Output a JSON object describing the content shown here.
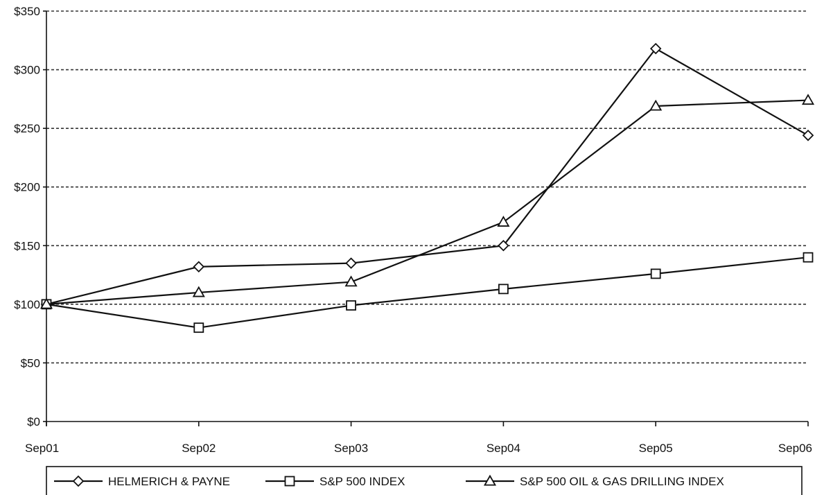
{
  "chart_data": {
    "type": "line",
    "title": "",
    "xlabel": "",
    "ylabel": "",
    "categories": [
      "Sep01",
      "Sep02",
      "Sep03",
      "Sep04",
      "Sep05",
      "Sep06"
    ],
    "ylim": [
      0,
      350
    ],
    "yticks": [
      0,
      50,
      100,
      150,
      200,
      250,
      300,
      350
    ],
    "ytick_labels": [
      "$0",
      "$50",
      "$100",
      "$150",
      "$200",
      "$250",
      "$300",
      "$350"
    ],
    "grid": "horizontal-dashed",
    "legend_position": "bottom",
    "series": [
      {
        "name": "HELMERICH & PAYNE",
        "marker": "diamond",
        "values": [
          100,
          132,
          135,
          150,
          318,
          244
        ]
      },
      {
        "name": "S&P 500 INDEX",
        "marker": "square",
        "values": [
          100,
          80,
          99,
          113,
          126,
          140
        ]
      },
      {
        "name": "S&P 500 OIL & GAS DRILLING INDEX",
        "marker": "triangle",
        "values": [
          100,
          110,
          119,
          170,
          269,
          274
        ]
      }
    ],
    "colors": {
      "line": "#111111",
      "grid": "#333333",
      "marker_fill": "#ffffff"
    }
  }
}
